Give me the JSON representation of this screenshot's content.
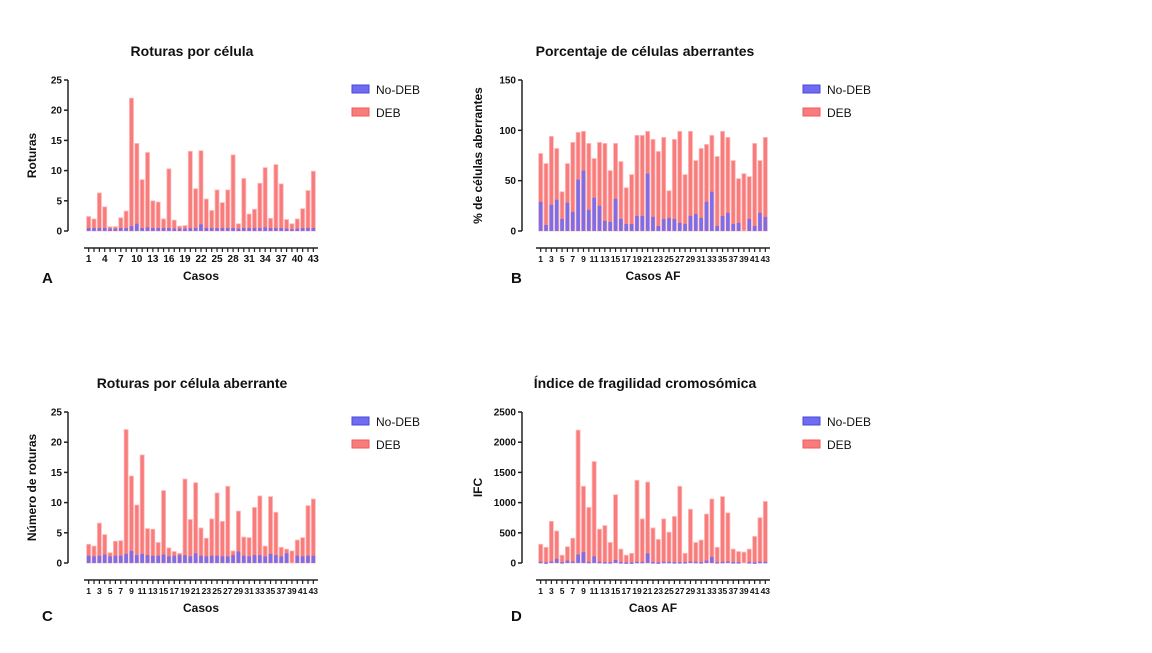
{
  "colors": {
    "no_deb": "#6F6CF2",
    "deb": "#F87C7C",
    "deb_stroke": "#F25A5A"
  },
  "chart_data": [
    {
      "type": "bar",
      "panel": "A",
      "title": "Roturas por célula",
      "xlabel": "Casos",
      "ylabel": "Roturas",
      "ylim": [
        0,
        25
      ],
      "yticks": [
        0,
        5,
        10,
        15,
        20,
        25
      ],
      "grid": false,
      "legend": "right",
      "xtick_labels": [
        "1",
        "4",
        "7",
        "10",
        "13",
        "16",
        "19",
        "22",
        "25",
        "28",
        "31",
        "34",
        "37",
        "40",
        "43"
      ],
      "series": [
        {
          "name": "No-DEB",
          "values": [
            0.5,
            0.5,
            0.5,
            0.5,
            0.4,
            0.4,
            0.5,
            0.5,
            0.8,
            1.2,
            0.5,
            0.6,
            0.5,
            0.5,
            0.5,
            0.5,
            0.4,
            0.4,
            0.4,
            0.5,
            0.5,
            1.1,
            0.5,
            0.5,
            0.5,
            0.5,
            0.5,
            0.5,
            0.4,
            0.5,
            0.5,
            0.5,
            0.5,
            0.6,
            0.5,
            0.5,
            0.5,
            0.4,
            0.3,
            0.4,
            0.5,
            0.5,
            0.5
          ]
        },
        {
          "name": "DEB",
          "values": [
            2.4,
            2.0,
            6.3,
            4.0,
            0.7,
            0.7,
            2.2,
            3.3,
            22,
            14.5,
            8.5,
            13,
            5,
            4.8,
            2,
            10.3,
            1.8,
            0.8,
            0.9,
            13.2,
            7,
            13.3,
            5.3,
            3.4,
            6.8,
            4.7,
            6.8,
            12.6,
            1.2,
            8.7,
            2.8,
            3.6,
            7.9,
            10.5,
            2.1,
            11,
            7.8,
            1.9,
            1.2,
            2.0,
            3.7,
            6.7,
            9.9
          ]
        }
      ]
    },
    {
      "type": "bar",
      "panel": "B",
      "title": "Porcentaje de células aberrantes",
      "xlabel": "Casos AF",
      "ylabel": "% de células aberrantes",
      "ylim": [
        0,
        150
      ],
      "yticks": [
        0,
        50,
        100,
        150
      ],
      "grid": false,
      "legend": "right",
      "xtick_labels": [
        "1",
        "3",
        "5",
        "7",
        "9",
        "11",
        "13",
        "15",
        "17",
        "19",
        "21",
        "23",
        "25",
        "27",
        "29",
        "31",
        "33",
        "35",
        "37",
        "39",
        "41",
        "43"
      ],
      "series": [
        {
          "name": "No-DEB",
          "values": [
            29,
            6,
            26,
            31,
            12,
            28,
            19,
            51,
            60,
            21,
            33,
            25,
            10,
            9,
            32,
            12,
            7,
            7,
            15,
            15,
            57,
            14,
            5,
            12,
            13,
            12,
            8,
            7,
            15,
            17,
            13,
            29,
            39,
            5,
            15,
            18,
            7,
            8,
            0,
            12,
            5,
            18,
            14
          ]
        },
        {
          "name": "DEB",
          "values": [
            77,
            67,
            94,
            82,
            39,
            67,
            88,
            98,
            99,
            87,
            72,
            88,
            87,
            60,
            87,
            69,
            43,
            56,
            95,
            95,
            99,
            91,
            79,
            93,
            40,
            91,
            99,
            56,
            99,
            70,
            82,
            86,
            95,
            74,
            99,
            93,
            70,
            52,
            57,
            54,
            87,
            70,
            93
          ]
        }
      ]
    },
    {
      "type": "bar",
      "panel": "C",
      "title": "Roturas por célula aberrante",
      "xlabel": "Casos",
      "ylabel": "Número de roturas",
      "ylim": [
        0,
        25
      ],
      "yticks": [
        0,
        5,
        10,
        15,
        20,
        25
      ],
      "grid": false,
      "legend": "right",
      "xtick_labels": [
        "1",
        "3",
        "5",
        "7",
        "9",
        "11",
        "13",
        "15",
        "17",
        "19",
        "21",
        "23",
        "25",
        "27",
        "29",
        "31",
        "33",
        "35",
        "37",
        "39",
        "41",
        "43"
      ],
      "series": [
        {
          "name": "No-DEB",
          "values": [
            1.2,
            1.1,
            1.2,
            1.4,
            1.1,
            1.2,
            1.2,
            1.5,
            2.0,
            1.3,
            1.5,
            1.3,
            1.2,
            1.2,
            1.4,
            1.1,
            1.2,
            1.3,
            1.3,
            1.1,
            1.6,
            1.2,
            1.1,
            1.2,
            1.2,
            1.1,
            1.1,
            1.3,
            1.9,
            1.2,
            1.1,
            1.3,
            1.3,
            1.1,
            1.5,
            1.3,
            1.1,
            1.6,
            0,
            1.2,
            1.1,
            1.2,
            1.2
          ]
        },
        {
          "name": "DEB",
          "values": [
            3.1,
            2.8,
            6.6,
            4.7,
            1.7,
            3.6,
            3.7,
            22.1,
            14.4,
            9.6,
            17.9,
            5.7,
            5.6,
            3.4,
            12,
            2.5,
            1.9,
            1.6,
            13.9,
            7.2,
            13.3,
            5.8,
            4.1,
            7.3,
            11.6,
            6.9,
            12.7,
            2.0,
            8.6,
            4.3,
            4.2,
            9.2,
            11.1,
            2.8,
            11,
            8.4,
            2.6,
            2.3,
            2.0,
            3.8,
            4.2,
            9.5,
            10.6
          ]
        }
      ]
    },
    {
      "type": "bar",
      "panel": "D",
      "title": "Índice de fragilidad cromosómica",
      "xlabel": "Caos AF",
      "ylabel": "IFC",
      "ylim": [
        0,
        2500
      ],
      "yticks": [
        0,
        500,
        1000,
        1500,
        2000,
        2500
      ],
      "grid": false,
      "legend": "right",
      "xtick_labels": [
        "1",
        "3",
        "5",
        "7",
        "9",
        "11",
        "13",
        "15",
        "17",
        "19",
        "21",
        "23",
        "25",
        "27",
        "29",
        "31",
        "33",
        "35",
        "37",
        "39",
        "41",
        "43"
      ],
      "series": [
        {
          "name": "No-DEB",
          "values": [
            20,
            10,
            25,
            70,
            15,
            40,
            25,
            140,
            180,
            20,
            110,
            20,
            15,
            15,
            50,
            15,
            10,
            10,
            20,
            20,
            160,
            15,
            10,
            20,
            20,
            15,
            15,
            15,
            25,
            20,
            15,
            40,
            100,
            15,
            20,
            25,
            15,
            15,
            0,
            15,
            10,
            20,
            20
          ]
        },
        {
          "name": "DEB",
          "values": [
            310,
            260,
            690,
            530,
            130,
            270,
            410,
            2200,
            1270,
            920,
            1680,
            560,
            620,
            340,
            1130,
            230,
            130,
            160,
            1370,
            730,
            1340,
            580,
            390,
            730,
            510,
            770,
            1270,
            160,
            890,
            340,
            380,
            810,
            1060,
            260,
            1100,
            830,
            230,
            190,
            180,
            230,
            440,
            750,
            1020
          ]
        }
      ]
    }
  ]
}
